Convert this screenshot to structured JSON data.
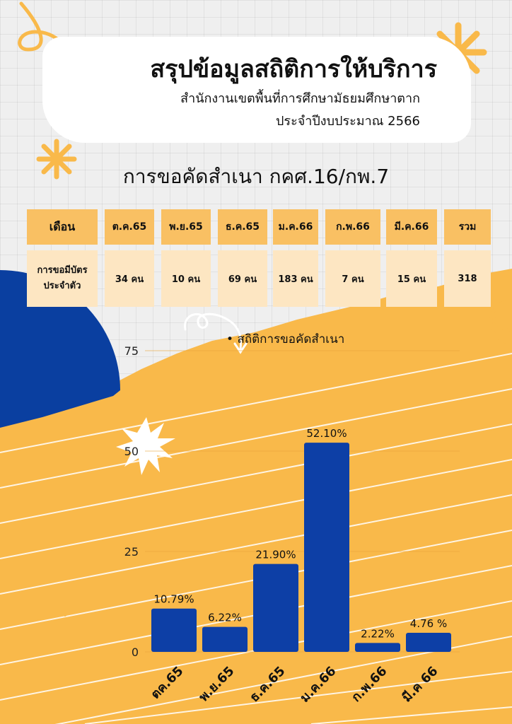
{
  "header": {
    "title": "สรุปข้อมูลสถิติการให้บริการ",
    "subtitle": "สำนักงานเขตพื้นที่การศึกษามัธยมศึกษาตาก",
    "subtitle2": "ประจำปีงบประมาณ 2566"
  },
  "section_title": "การขอคัดสำเนา กคศ.16/กพ.7",
  "table": {
    "row_header_1": "เดือน",
    "row_header_2": "การขอมีบัตรประจำตัว",
    "columns": [
      "ต.ค.65",
      "พ.ย.65",
      "ธ.ค.65",
      "ม.ค.66",
      "ก.พ.66",
      "มี.ค.66",
      "รวม"
    ],
    "values": [
      "34 คน",
      "10 คน",
      "69 คน",
      "183 คน",
      "7 คน",
      "15 คน",
      "318"
    ]
  },
  "colors": {
    "bar": "#0d3fa6",
    "accent_orange": "#f9b94a",
    "table_header": "#f9c063",
    "table_row": "#fde6c2",
    "blue_circle": "#0a3fa0"
  },
  "chart_data": {
    "type": "bar",
    "title": "สถิติการขอคัดสำเนา",
    "categories": [
      "ตค.65",
      "พ.ย.65",
      "ธ.ค.65",
      "ม.ค.66",
      "ก.พ.66",
      "มี.ค 66"
    ],
    "values": [
      10.79,
      6.22,
      21.9,
      52.1,
      2.22,
      4.76
    ],
    "data_labels": [
      "10.79%",
      "6.22%",
      "21.90%",
      "52.10%",
      "2.22%",
      "4.76 %"
    ],
    "ylim": [
      0,
      75
    ],
    "yticks": [
      "0",
      "25",
      "50",
      "75"
    ],
    "xlabel": "",
    "ylabel": "",
    "grid": true
  }
}
